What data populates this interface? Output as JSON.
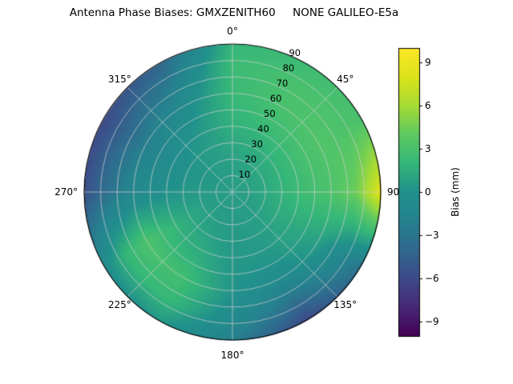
{
  "title": "Antenna Phase Biases: GMXZENITH60     NONE GALILEO-E5a",
  "chart_data": {
    "type": "heatmap",
    "projection": "polar",
    "title": "Antenna Phase Biases: GMXZENITH60     NONE GALILEO-E5a",
    "theta_zero_location": "top",
    "theta_direction": "clockwise",
    "angular_ticks": [
      {
        "angle": 0,
        "label": "0°"
      },
      {
        "angle": 45,
        "label": "45°"
      },
      {
        "angle": 90,
        "label": "90"
      },
      {
        "angle": 135,
        "label": "135°"
      },
      {
        "angle": 180,
        "label": "180°"
      },
      {
        "angle": 225,
        "label": "225°"
      },
      {
        "angle": 270,
        "label": "270°"
      },
      {
        "angle": 315,
        "label": "315°"
      }
    ],
    "radial_ticks": [
      10,
      20,
      30,
      40,
      50,
      60,
      70,
      80,
      90
    ],
    "radial_max": 90,
    "radial_label_angle_deg": 22.5,
    "grid": true,
    "azimuth_deg": [
      0,
      30,
      60,
      90,
      120,
      150,
      180,
      210,
      240,
      270,
      300,
      330,
      360
    ],
    "zenith_deg": [
      0,
      15,
      30,
      45,
      60,
      75,
      90
    ],
    "bias_mm": [
      [
        0.6,
        0.6,
        0.6,
        0.6,
        0.6,
        0.6,
        0.6,
        0.6,
        0.6,
        0.6,
        0.6,
        0.6,
        0.6
      ],
      [
        0.8,
        0.9,
        1.0,
        1.0,
        0.8,
        0.6,
        0.5,
        0.6,
        0.7,
        0.5,
        0.4,
        0.6,
        0.8
      ],
      [
        1.2,
        1.5,
        1.8,
        1.8,
        1.2,
        0.6,
        0.4,
        0.9,
        1.2,
        0.3,
        0.1,
        0.6,
        1.2
      ],
      [
        1.8,
        2.4,
        2.8,
        2.6,
        1.2,
        0.3,
        0.3,
        1.6,
        2.2,
        -0.3,
        -0.8,
        0.2,
        1.8
      ],
      [
        2.2,
        3.0,
        3.4,
        3.2,
        0.8,
        -0.8,
        0.1,
        2.6,
        3.2,
        -1.2,
        -2.2,
        -0.8,
        2.2
      ],
      [
        2.4,
        3.0,
        3.2,
        4.5,
        -1.0,
        -3.2,
        -0.8,
        2.2,
        2.0,
        -3.2,
        -4.2,
        -2.4,
        2.4
      ],
      [
        2.0,
        2.4,
        3.0,
        8.5,
        -3.0,
        -6.2,
        -2.2,
        0.4,
        -0.6,
        -5.6,
        -6.0,
        -4.2,
        2.0
      ]
    ],
    "colorbar": {
      "label": "Bias (mm)",
      "tick_values": [
        9,
        6,
        3,
        0,
        -3,
        -6,
        -9
      ],
      "tick_labels": [
        "9",
        "6",
        "3",
        "0",
        "−3",
        "−6",
        "−9"
      ],
      "vmin": -10,
      "vmax": 10,
      "colormap": "viridis"
    }
  },
  "colors": {
    "background": "#ffffff",
    "text": "#000000",
    "grid": "#cfcfcf",
    "outline": "#000000",
    "viridis_anchors": [
      "#440154",
      "#482878",
      "#3e4a89",
      "#31688e",
      "#26828e",
      "#21918c",
      "#35b779",
      "#5ec962",
      "#a5db36",
      "#dce319",
      "#fde725"
    ]
  }
}
